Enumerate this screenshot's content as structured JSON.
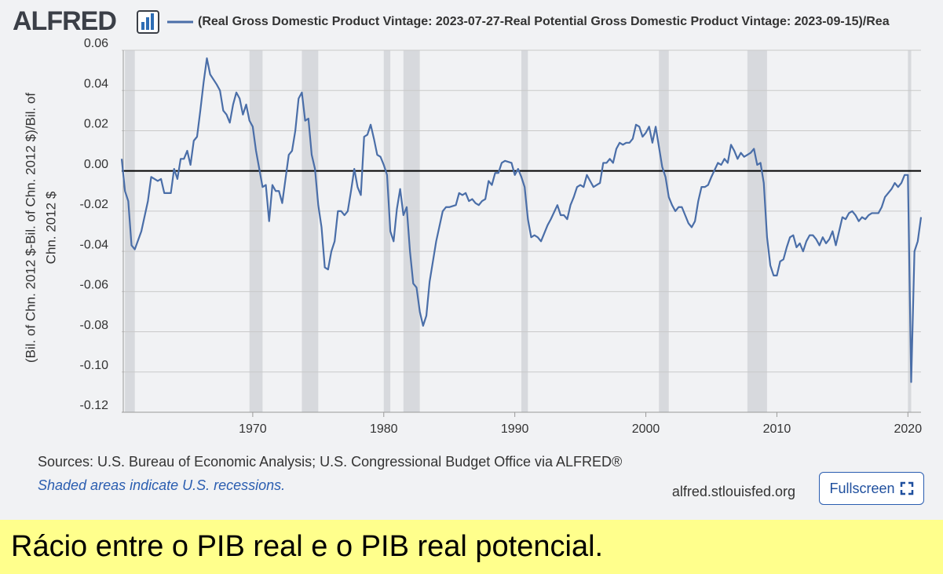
{
  "logo": "ALFRED",
  "chart_data": {
    "type": "line",
    "ylabel": [
      "(Bil. of Chn. 2012 $-Bil. of Chn. 2012 $)/Bil. of",
      "Chn. 2012 $"
    ],
    "x": [
      1960,
      1960.25,
      1960.5,
      1960.75,
      1961,
      1961.5,
      1962,
      1962.25,
      1962.75,
      1963,
      1963.25,
      1963.75,
      1964,
      1964.25,
      1964.5,
      1964.75,
      1965,
      1965.25,
      1965.5,
      1965.75,
      1966,
      1966.25,
      1966.5,
      1966.75,
      1967.25,
      1967.5,
      1967.75,
      1968,
      1968.25,
      1968.5,
      1968.75,
      1969,
      1969.25,
      1969.5,
      1969.75,
      1970,
      1970.25,
      1970.5,
      1970.75,
      1971,
      1971.25,
      1971.5,
      1971.75,
      1972,
      1972.25,
      1972.5,
      1972.75,
      1973,
      1973.25,
      1973.5,
      1973.75,
      1974,
      1974.25,
      1974.5,
      1974.75,
      1975,
      1975.25,
      1975.5,
      1975.75,
      1976,
      1976.25,
      1976.5,
      1976.75,
      1977,
      1977.25,
      1977.5,
      1977.75,
      1978,
      1978.25,
      1978.5,
      1978.75,
      1979,
      1979.25,
      1979.5,
      1979.75,
      1980,
      1980.25,
      1980.5,
      1980.75,
      1981,
      1981.25,
      1981.5,
      1981.75,
      1982,
      1982.25,
      1982.5,
      1982.75,
      1983,
      1983.25,
      1983.5,
      1984,
      1984.5,
      1984.75,
      1985,
      1985.5,
      1985.75,
      1986,
      1986.25,
      1986.5,
      1986.75,
      1987,
      1987.25,
      1987.5,
      1987.75,
      1988,
      1988.25,
      1988.5,
      1988.75,
      1989,
      1989.25,
      1989.75,
      1990,
      1990.25,
      1990.5,
      1990.75,
      1991,
      1991.25,
      1991.5,
      1991.75,
      1992,
      1992.5,
      1992.75,
      1993.25,
      1993.5,
      1993.75,
      1994,
      1994.25,
      1994.5,
      1994.75,
      1995,
      1995.25,
      1995.5,
      1995.75,
      1996,
      1996.25,
      1996.5,
      1996.75,
      1997,
      1997.25,
      1997.5,
      1997.75,
      1998,
      1998.25,
      1998.5,
      1998.75,
      1999,
      1999.25,
      1999.5,
      1999.75,
      2000,
      2000.25,
      2000.5,
      2000.75,
      2001,
      2001.25,
      2001.5,
      2001.75,
      2002,
      2002.25,
      2002.5,
      2002.75,
      2003,
      2003.25,
      2003.5,
      2003.75,
      2004,
      2004.25,
      2004.5,
      2004.75,
      2005,
      2005.5,
      2005.75,
      2006,
      2006.25,
      2006.5,
      2006.75,
      2007,
      2007.25,
      2007.5,
      2007.75,
      2008,
      2008.25,
      2008.5,
      2008.75,
      2009,
      2009.25,
      2009.5,
      2009.75,
      2010,
      2010.25,
      2010.5,
      2010.75,
      2011,
      2011.25,
      2011.5,
      2011.75,
      2012,
      2012.25,
      2012.5,
      2012.75,
      2013,
      2013.25,
      2013.5,
      2013.75,
      2014,
      2014.25,
      2014.5,
      2014.75,
      2015,
      2015.25,
      2015.5,
      2015.75,
      2016,
      2016.25,
      2016.5,
      2016.75,
      2017,
      2017.25,
      2017.75,
      2018,
      2018.25,
      2018.5,
      2018.75,
      2019,
      2019.25,
      2019.5,
      2019.75,
      2020,
      2020.25,
      2020.5,
      2020.75,
      2021
    ],
    "series": [
      {
        "name": "(Real Gross Domestic Product Vintage: 2023-07-27-Real Potential Gross Domestic Product Vintage: 2023-09-15)/Rea",
        "color": "#4a6ea8",
        "values": [
          0.006,
          -0.01,
          -0.015,
          -0.037,
          -0.039,
          -0.03,
          -0.015,
          -0.003,
          -0.005,
          -0.004,
          -0.011,
          -0.011,
          0.001,
          -0.004,
          0.006,
          0.006,
          0.01,
          0.003,
          0.015,
          0.017,
          0.03,
          0.044,
          0.056,
          0.048,
          0.043,
          0.04,
          0.03,
          0.028,
          0.024,
          0.033,
          0.039,
          0.036,
          0.028,
          0.033,
          0.025,
          0.022,
          0.01,
          0.001,
          -0.008,
          -0.007,
          -0.025,
          -0.007,
          -0.01,
          -0.01,
          -0.016,
          -0.004,
          0.008,
          0.01,
          0.02,
          0.036,
          0.039,
          0.025,
          0.026,
          0.008,
          0.001,
          -0.017,
          -0.028,
          -0.048,
          -0.049,
          -0.04,
          -0.035,
          -0.02,
          -0.02,
          -0.022,
          -0.02,
          -0.01,
          0.001,
          -0.008,
          -0.012,
          0.017,
          0.018,
          0.023,
          0.016,
          0.008,
          0.007,
          0.003,
          -0.002,
          -0.03,
          -0.035,
          -0.019,
          -0.009,
          -0.022,
          -0.018,
          -0.04,
          -0.056,
          -0.058,
          -0.07,
          -0.077,
          -0.072,
          -0.055,
          -0.035,
          -0.02,
          -0.018,
          -0.018,
          -0.017,
          -0.011,
          -0.012,
          -0.011,
          -0.015,
          -0.014,
          -0.016,
          -0.017,
          -0.015,
          -0.014,
          -0.005,
          -0.007,
          -0.001,
          -0.001,
          0.004,
          0.005,
          0.004,
          -0.002,
          0.001,
          -0.003,
          -0.008,
          -0.024,
          -0.033,
          -0.032,
          -0.033,
          -0.035,
          -0.027,
          -0.024,
          -0.017,
          -0.022,
          -0.022,
          -0.024,
          -0.017,
          -0.013,
          -0.008,
          -0.007,
          -0.008,
          -0.002,
          -0.005,
          -0.008,
          -0.007,
          -0.006,
          0.004,
          0.004,
          0.006,
          0.004,
          0.011,
          0.014,
          0.013,
          0.014,
          0.014,
          0.016,
          0.023,
          0.022,
          0.017,
          0.019,
          0.022,
          0.014,
          0.022,
          0.012,
          0.002,
          -0.003,
          -0.013,
          -0.017,
          -0.02,
          -0.018,
          -0.018,
          -0.022,
          -0.026,
          -0.028,
          -0.025,
          -0.015,
          -0.008,
          -0.008,
          -0.007,
          -0.003,
          0.004,
          0.003,
          0.006,
          0.004,
          0.013,
          0.01,
          0.006,
          0.009,
          0.007,
          0.008,
          0.009,
          0.011,
          0.003,
          0.004,
          -0.006,
          -0.033,
          -0.047,
          -0.052,
          -0.052,
          -0.045,
          -0.044,
          -0.038,
          -0.033,
          -0.032,
          -0.038,
          -0.036,
          -0.04,
          -0.035,
          -0.032,
          -0.032,
          -0.034,
          -0.037,
          -0.033,
          -0.036,
          -0.034,
          -0.03,
          -0.037,
          -0.03,
          -0.023,
          -0.024,
          -0.021,
          -0.02,
          -0.022,
          -0.025,
          -0.023,
          -0.024,
          -0.022,
          -0.021,
          -0.021,
          -0.018,
          -0.013,
          -0.011,
          -0.009,
          -0.006,
          -0.008,
          -0.006,
          -0.002,
          -0.002,
          -0.105,
          -0.04,
          -0.035,
          -0.023
        ]
      }
    ],
    "xlim": [
      1960,
      2021
    ],
    "ylim": [
      -0.12,
      0.06
    ],
    "xticks": [
      1970,
      1980,
      1990,
      2000,
      2010,
      2020
    ],
    "yticks": [
      -0.12,
      {
        "value": -0.1,
        "label": "-0.10"
      },
      -0.08,
      -0.06,
      -0.04,
      -0.02,
      {
        "value": 0,
        "label": "0.00"
      },
      0.02,
      0.04,
      0.06
    ],
    "grid": true,
    "reference_line": 0,
    "recessions": [
      [
        1960.25,
        1961.0
      ],
      [
        1969.75,
        1970.75
      ],
      [
        1973.75,
        1975.0
      ],
      [
        1980.0,
        1980.5
      ],
      [
        1981.5,
        1982.75
      ],
      [
        1990.5,
        1991.0
      ],
      [
        2001.0,
        2001.75
      ],
      [
        2007.75,
        2009.25
      ],
      [
        2020.0,
        2020.25
      ]
    ],
    "recession_color": "#d7d9dd"
  },
  "sources": "Sources: U.S. Bureau of Economic Analysis; U.S. Congressional Budget Office via ALFRED®",
  "note": "Shaded areas indicate U.S. recessions.",
  "site": "alfred.stlouisfed.org",
  "button": "Fullscreen",
  "caption": "Rácio entre o PIB real e o PIB real potencial."
}
